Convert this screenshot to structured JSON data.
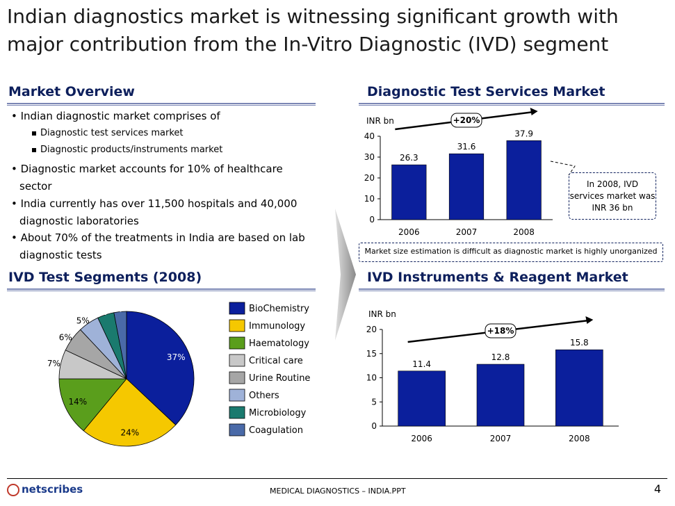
{
  "title": "Indian diagnostics market is witnessing significant growth with major contribution from the In-Vitro Diagnostic (IVD) segment",
  "market_overview": {
    "header": "Market Overview",
    "bullet1": "Indian diagnostic market comprises of",
    "sub1": "Diagnostic test services market",
    "sub2": "Diagnostic products/instruments market",
    "bullet2": "Diagnostic market accounts for 10% of healthcare sector",
    "bullet3": "India currently has over 11,500 hospitals and 40,000 diagnostic laboratories",
    "bullet4": "About 70% of the treatments in India are based on lab diagnostic tests"
  },
  "services_header": "Diagnostic Test Services Market",
  "services_note": "Market size estimation is difficult as diagnostic market is highly unorganized",
  "services_callout": "In 2008, IVD services market was INR 36 bn",
  "ivd_segments_header": "IVD Test Segments (2008)",
  "instruments_header": "IVD Instruments & Reagent Market",
  "footer": {
    "center": "MEDICAL DIAGNOSTICS – INDIA.PPT",
    "page": "4",
    "logo": "netscribes"
  },
  "chart_data": [
    {
      "type": "bar",
      "ylabel": "INR bn",
      "categories": [
        "2006",
        "2007",
        "2008"
      ],
      "values": [
        26.3,
        31.6,
        37.9
      ],
      "ylim": [
        0,
        40
      ],
      "yticks": [
        0,
        10,
        20,
        30,
        40
      ],
      "growth_label": "+20%",
      "bar_color": "#0b1f9c"
    },
    {
      "type": "pie",
      "labels": [
        "BioChemistry",
        "Immunology",
        "Haematology",
        "Critical care",
        "Urine Routine",
        "Others",
        "Microbiology",
        "Coagulation"
      ],
      "values": [
        37,
        24,
        14,
        7,
        6,
        5,
        4,
        3
      ],
      "value_labels": [
        "37%",
        "24%",
        "14%",
        "7%",
        "6%",
        "5%",
        "4%",
        "3%"
      ],
      "colors": [
        "#0b1f9c",
        "#f5c800",
        "#5a9e1c",
        "#c8c8c8",
        "#a6a6a6",
        "#9fb2d8",
        "#1a7a6e",
        "#4a6aa8"
      ],
      "legend_position": "right"
    },
    {
      "type": "bar",
      "ylabel": "INR bn",
      "categories": [
        "2006",
        "2007",
        "2008"
      ],
      "values": [
        11.4,
        12.8,
        15.8
      ],
      "ylim": [
        0,
        20
      ],
      "yticks": [
        0,
        5,
        10,
        15,
        20
      ],
      "growth_label": "+18%",
      "bar_color": "#0b1f9c"
    }
  ]
}
